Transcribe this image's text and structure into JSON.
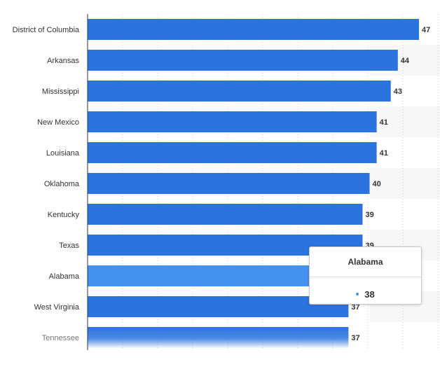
{
  "chart_data": {
    "type": "bar",
    "orientation": "horizontal",
    "categories": [
      "District of Columbia",
      "Arkansas",
      "Mississippi",
      "New Mexico",
      "Louisiana",
      "Oklahoma",
      "Kentucky",
      "Texas",
      "Alabama",
      "West Virginia",
      "Tennessee"
    ],
    "values": [
      47,
      44,
      43,
      41,
      41,
      40,
      39,
      39,
      38,
      37,
      37
    ],
    "value_labels": [
      "47",
      "44",
      "43",
      "41",
      "41",
      "40",
      "39",
      "39",
      "",
      "37",
      "37"
    ],
    "highlighted": "Alabama",
    "xlim": [
      0,
      47
    ],
    "grid": true,
    "title": "",
    "xlabel": "",
    "ylabel": ""
  },
  "colors": {
    "bar": "#2b74de",
    "bar_highlight": "#4491f0",
    "grid": "#cccccc",
    "band": "#f7f7f7",
    "axis": "#333333"
  },
  "tooltip": {
    "title": "Alabama",
    "value": "38"
  }
}
